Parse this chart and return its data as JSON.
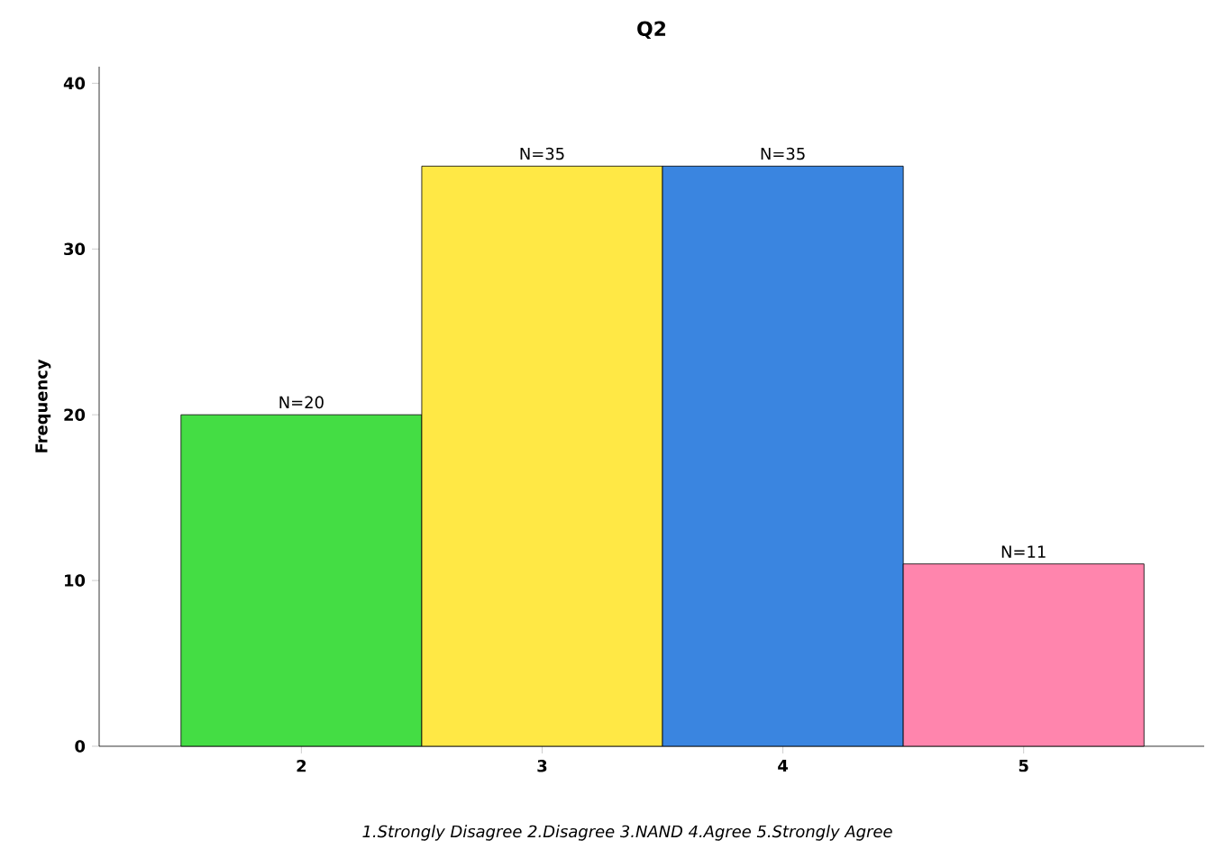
{
  "chart_data": {
    "type": "bar",
    "title": "Q2",
    "ylabel": "Frequency",
    "categories": [
      "2",
      "3",
      "4",
      "5"
    ],
    "values": [
      20,
      35,
      35,
      11
    ],
    "colors": [
      "#44dd44",
      "#ffe845",
      "#3a85e0",
      "#ff85ad"
    ],
    "value_labels": [
      "N=20",
      "N=35",
      "N=35",
      "N=11"
    ],
    "ylim": [
      0,
      41
    ],
    "yticks": [
      0,
      10,
      20,
      30,
      40
    ],
    "grid": false,
    "annotations": [
      "1.Strongly Disagree 2.Disagree 3.NAND 4.Agree 5.Strongly Agree"
    ]
  }
}
